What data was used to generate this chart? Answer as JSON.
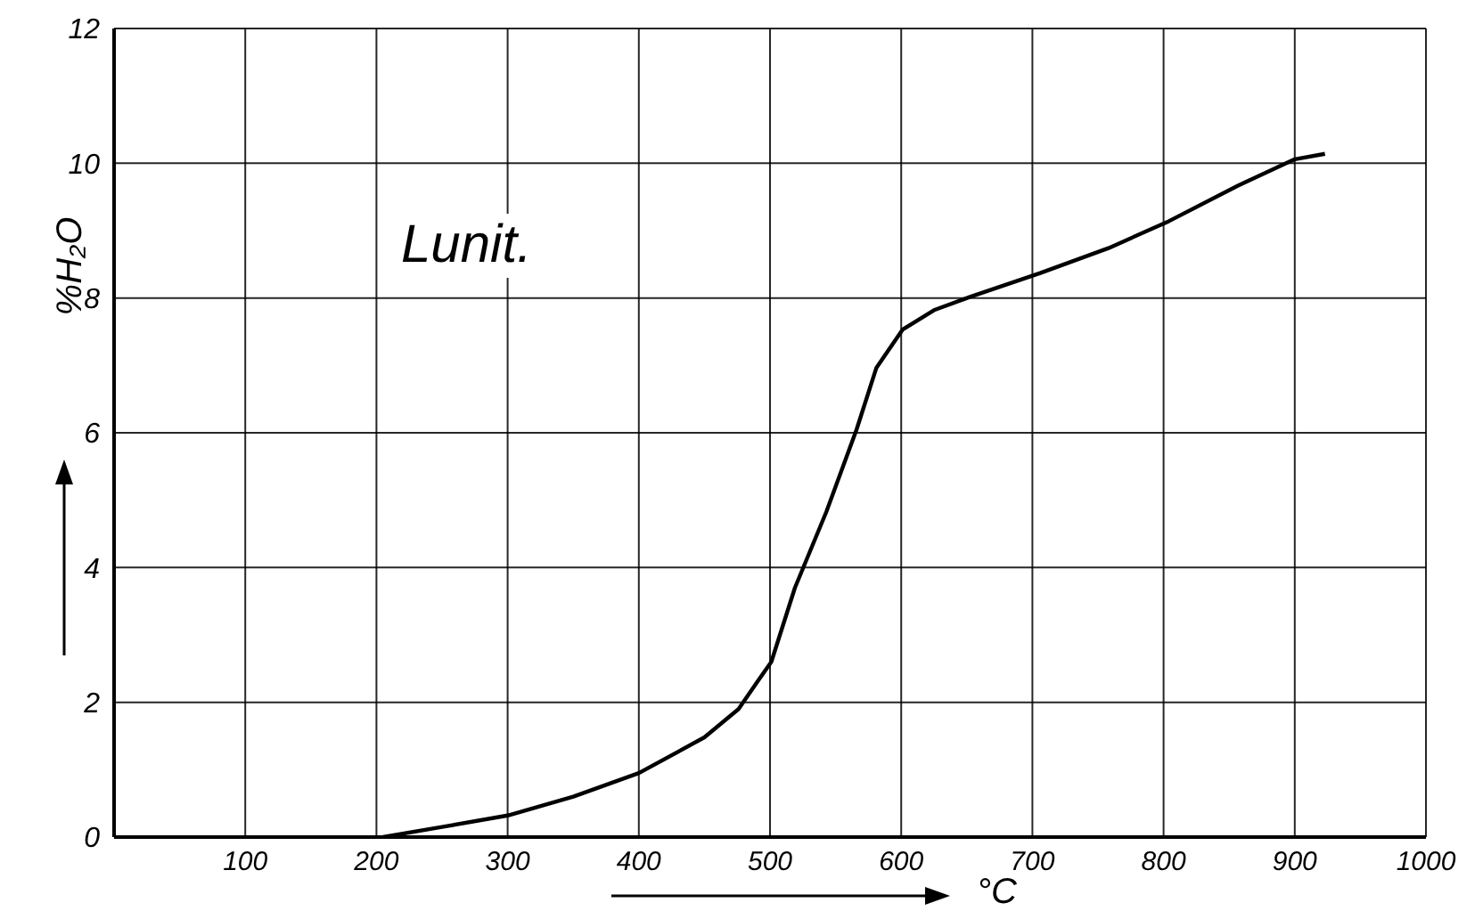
{
  "chart_data": {
    "type": "line",
    "xlabel": "°C",
    "ylabel": "%H₂O",
    "annotations": [
      "Lunit."
    ],
    "series": [
      {
        "color": "#000000",
        "x": [
          205,
          250,
          300,
          350,
          400,
          450,
          476,
          493,
          501,
          519,
          543,
          566,
          581,
          601,
          625,
          653,
          706,
          758,
          804,
          857,
          900,
          923
        ],
        "values": [
          0,
          0.15,
          0.32,
          0.6,
          0.95,
          1.48,
          1.9,
          2.38,
          2.6,
          3.7,
          4.83,
          6.05,
          6.96,
          7.53,
          7.82,
          8.02,
          8.37,
          8.74,
          9.14,
          9.67,
          10.06,
          10.14
        ]
      }
    ],
    "xlim": [
      0,
      1000
    ],
    "xticks": [
      100,
      200,
      300,
      400,
      500,
      600,
      700,
      800,
      900,
      1000
    ],
    "ylim": [
      0,
      12
    ],
    "yticks": [
      0,
      2,
      4,
      6,
      8,
      10,
      12
    ],
    "grid": true,
    "marker": "none",
    "line_style": "solid",
    "legend": false
  }
}
